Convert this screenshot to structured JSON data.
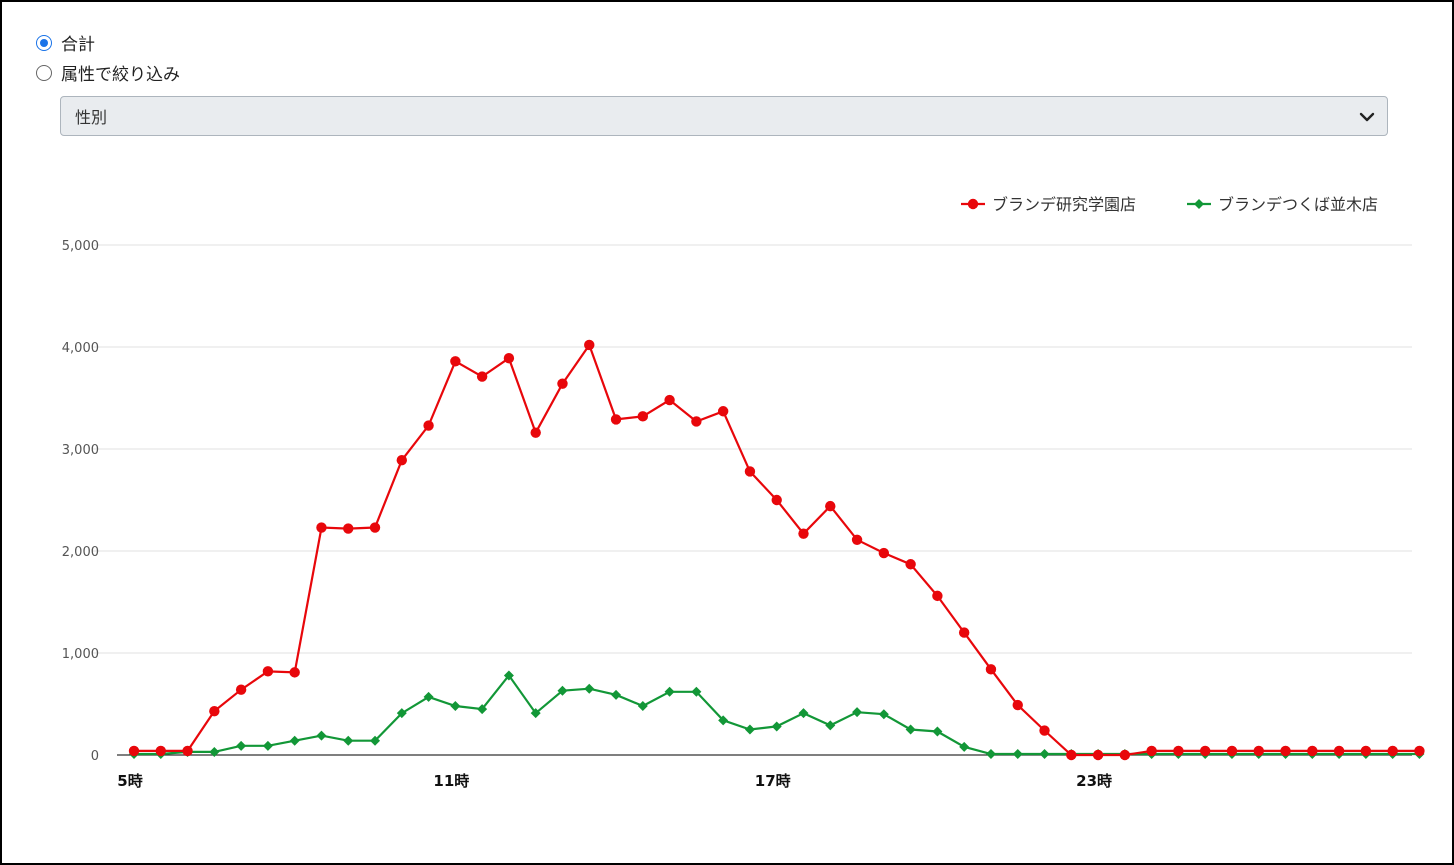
{
  "filters": {
    "total_label": "合計",
    "attribute_label": "属性で絞り込み",
    "selected": "total",
    "attribute_select": {
      "value": "性別"
    }
  },
  "colors": {
    "series1": "#e8070b",
    "series2": "#129737",
    "selected_radio": "#1a73e8"
  },
  "chart_data": {
    "type": "line",
    "title": "",
    "xlabel": "",
    "ylabel": "",
    "ylim": [
      0,
      5000
    ],
    "yticks": [
      0,
      1000,
      2000,
      3000,
      4000,
      5000
    ],
    "ytick_labels": [
      "0",
      "1,000",
      "2,000",
      "3,000",
      "4,000",
      "5,000"
    ],
    "xtick_labels": [
      {
        "index": 0,
        "label": "5時"
      },
      {
        "index": 12,
        "label": "11時"
      },
      {
        "index": 24,
        "label": "17時"
      },
      {
        "index": 36,
        "label": "23時"
      }
    ],
    "legend_position": "top-right",
    "grid": true,
    "series": [
      {
        "name": "ブランデ研究学園店",
        "marker": "circle",
        "values": [
          40,
          40,
          40,
          430,
          640,
          820,
          810,
          2230,
          2220,
          2230,
          2890,
          3230,
          3860,
          3710,
          3890,
          3160,
          3640,
          4020,
          3290,
          3320,
          3480,
          3270,
          3370,
          2780,
          2500,
          2170,
          2440,
          2110,
          1980,
          1870,
          1560,
          1200,
          840,
          490,
          240,
          0,
          0,
          0,
          40,
          40,
          40,
          40,
          40,
          40,
          40,
          40,
          40,
          40,
          40
        ]
      },
      {
        "name": "ブランデつくば並木店",
        "marker": "diamond",
        "values": [
          10,
          10,
          30,
          30,
          90,
          90,
          140,
          190,
          140,
          140,
          410,
          570,
          480,
          450,
          780,
          410,
          630,
          650,
          590,
          480,
          620,
          620,
          340,
          250,
          280,
          410,
          290,
          420,
          400,
          250,
          230,
          80,
          10,
          10,
          10,
          10,
          10,
          10,
          10,
          10,
          10,
          10,
          10,
          10,
          10,
          10,
          10,
          10,
          10
        ]
      }
    ]
  }
}
